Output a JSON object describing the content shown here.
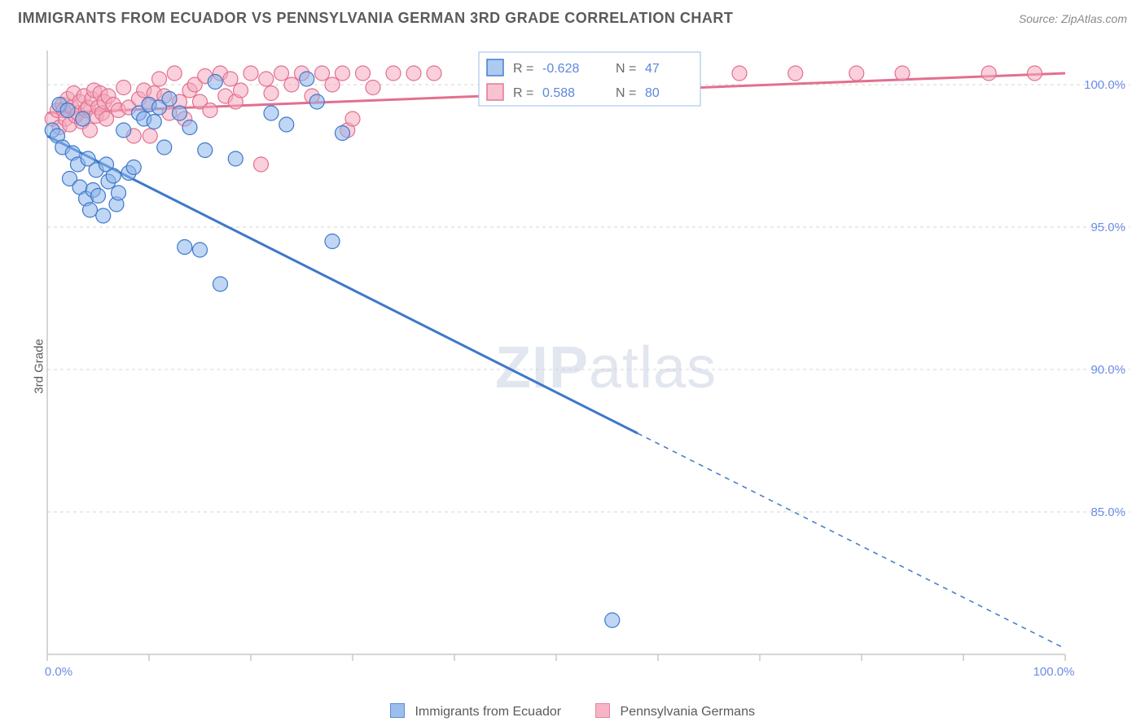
{
  "title": "IMMIGRANTS FROM ECUADOR VS PENNSYLVANIA GERMAN 3RD GRADE CORRELATION CHART",
  "source_label": "Source:",
  "source_name": "ZipAtlas.com",
  "ylabel": "3rd Grade",
  "watermark_bold": "ZIP",
  "watermark_thin": "atlas",
  "chart": {
    "type": "scatter",
    "xlim": [
      0,
      100
    ],
    "ylim": [
      80,
      101.2
    ],
    "y_ticks": [
      85.0,
      90.0,
      95.0,
      100.0
    ],
    "y_tick_labels": [
      "85.0%",
      "90.0%",
      "95.0%",
      "100.0%"
    ],
    "x_ticks": [
      0,
      10,
      20,
      30,
      40,
      50,
      60,
      70,
      80,
      90,
      100
    ],
    "x_end_labels": [
      "0.0%",
      "100.0%"
    ],
    "background_color": "#ffffff",
    "grid_color": "#d6d6d6",
    "axis_color": "#c8c8c8",
    "series": [
      {
        "key": "ecuador",
        "label": "Immigrants from Ecuador",
        "color_stroke": "#3e78c9",
        "color_fill": "#8ab4eb",
        "fill_opacity": 0.55,
        "marker_r": 9,
        "R": -0.628,
        "N": 47,
        "trend": {
          "solid_from_x": 0,
          "solid_to_x": 58,
          "y0": 98.2,
          "slope_per_100": -18.0
        },
        "points": [
          [
            0.5,
            98.4
          ],
          [
            1.0,
            98.2
          ],
          [
            1.2,
            99.3
          ],
          [
            1.5,
            97.8
          ],
          [
            2.0,
            99.1
          ],
          [
            2.2,
            96.7
          ],
          [
            2.5,
            97.6
          ],
          [
            3.0,
            97.2
          ],
          [
            3.2,
            96.4
          ],
          [
            3.5,
            98.8
          ],
          [
            3.8,
            96.0
          ],
          [
            4.0,
            97.4
          ],
          [
            4.2,
            95.6
          ],
          [
            4.5,
            96.3
          ],
          [
            4.8,
            97.0
          ],
          [
            5.0,
            96.1
          ],
          [
            5.5,
            95.4
          ],
          [
            5.8,
            97.2
          ],
          [
            6.0,
            96.6
          ],
          [
            6.5,
            96.8
          ],
          [
            6.8,
            95.8
          ],
          [
            7.0,
            96.2
          ],
          [
            7.5,
            98.4
          ],
          [
            8.0,
            96.9
          ],
          [
            8.5,
            97.1
          ],
          [
            9.0,
            99.0
          ],
          [
            9.5,
            98.8
          ],
          [
            10.0,
            99.3
          ],
          [
            10.5,
            98.7
          ],
          [
            11.0,
            99.2
          ],
          [
            11.5,
            97.8
          ],
          [
            12.0,
            99.5
          ],
          [
            13.0,
            99.0
          ],
          [
            13.5,
            94.3
          ],
          [
            14.0,
            98.5
          ],
          [
            15.0,
            94.2
          ],
          [
            15.5,
            97.7
          ],
          [
            16.5,
            100.1
          ],
          [
            17.0,
            93.0
          ],
          [
            18.5,
            97.4
          ],
          [
            22.0,
            99.0
          ],
          [
            23.5,
            98.6
          ],
          [
            25.5,
            100.2
          ],
          [
            26.5,
            99.4
          ],
          [
            28.0,
            94.5
          ],
          [
            29.0,
            98.3
          ],
          [
            55.5,
            81.2
          ]
        ]
      },
      {
        "key": "pagerman",
        "label": "Pennsylvania Germans",
        "color_stroke": "#e36f8f",
        "color_fill": "#f4a9bd",
        "fill_opacity": 0.55,
        "marker_r": 9,
        "R": 0.588,
        "N": 80,
        "trend": {
          "solid_from_x": 0,
          "solid_to_x": 100,
          "y0": 99.0,
          "slope_per_100": 1.4
        },
        "points": [
          [
            0.5,
            98.8
          ],
          [
            1.0,
            99.1
          ],
          [
            1.2,
            98.5
          ],
          [
            1.5,
            99.3
          ],
          [
            1.6,
            99.1
          ],
          [
            1.8,
            98.8
          ],
          [
            2.0,
            99.5
          ],
          [
            2.2,
            98.6
          ],
          [
            2.4,
            99.2
          ],
          [
            2.6,
            99.7
          ],
          [
            2.8,
            98.9
          ],
          [
            3.0,
            99.0
          ],
          [
            3.2,
            99.4
          ],
          [
            3.4,
            98.7
          ],
          [
            3.6,
            99.6
          ],
          [
            3.8,
            99.1
          ],
          [
            4.0,
            99.2
          ],
          [
            4.2,
            98.4
          ],
          [
            4.4,
            99.5
          ],
          [
            4.6,
            99.8
          ],
          [
            4.8,
            98.9
          ],
          [
            5.0,
            99.2
          ],
          [
            5.2,
            99.7
          ],
          [
            5.4,
            99.0
          ],
          [
            5.6,
            99.4
          ],
          [
            5.8,
            98.8
          ],
          [
            6.0,
            99.6
          ],
          [
            6.5,
            99.3
          ],
          [
            7.0,
            99.1
          ],
          [
            7.5,
            99.9
          ],
          [
            8.0,
            99.2
          ],
          [
            8.5,
            98.2
          ],
          [
            9.0,
            99.5
          ],
          [
            9.5,
            99.8
          ],
          [
            10.0,
            99.3
          ],
          [
            10.1,
            98.2
          ],
          [
            10.5,
            99.7
          ],
          [
            11.0,
            100.2
          ],
          [
            11.5,
            99.6
          ],
          [
            12.0,
            99.0
          ],
          [
            12.5,
            100.4
          ],
          [
            13.0,
            99.4
          ],
          [
            13.5,
            98.8
          ],
          [
            14.0,
            99.8
          ],
          [
            14.5,
            100.0
          ],
          [
            15.0,
            99.4
          ],
          [
            15.5,
            100.3
          ],
          [
            16.0,
            99.1
          ],
          [
            17.0,
            100.4
          ],
          [
            17.5,
            99.6
          ],
          [
            18.0,
            100.2
          ],
          [
            18.5,
            99.4
          ],
          [
            19.0,
            99.8
          ],
          [
            20.0,
            100.4
          ],
          [
            21.0,
            97.2
          ],
          [
            21.5,
            100.2
          ],
          [
            22.0,
            99.7
          ],
          [
            23.0,
            100.4
          ],
          [
            24.0,
            100.0
          ],
          [
            25.0,
            100.4
          ],
          [
            26.0,
            99.6
          ],
          [
            27.0,
            100.4
          ],
          [
            28.0,
            100.0
          ],
          [
            29.0,
            100.4
          ],
          [
            29.5,
            98.4
          ],
          [
            30.0,
            98.8
          ],
          [
            31.0,
            100.4
          ],
          [
            32.0,
            99.9
          ],
          [
            34.0,
            100.4
          ],
          [
            36.0,
            100.4
          ],
          [
            38.0,
            100.4
          ],
          [
            45.0,
            100.4
          ],
          [
            59.5,
            100.4
          ],
          [
            63.0,
            100.4
          ],
          [
            68.0,
            100.4
          ],
          [
            73.5,
            100.4
          ],
          [
            79.5,
            100.4
          ],
          [
            84.0,
            100.4
          ],
          [
            92.5,
            100.4
          ],
          [
            97.0,
            100.4
          ]
        ]
      }
    ],
    "legend_box": {
      "rows": [
        {
          "series": "ecuador",
          "R_text": "-0.628",
          "N_text": "47"
        },
        {
          "series": "pagerman",
          "R_text": "0.588",
          "N_text": "80"
        }
      ],
      "label_R": "R =",
      "label_N": "N ="
    }
  },
  "bottom_legend": [
    {
      "series": "ecuador",
      "label": "Immigrants from Ecuador"
    },
    {
      "series": "pagerman",
      "label": "Pennsylvania Germans"
    }
  ]
}
